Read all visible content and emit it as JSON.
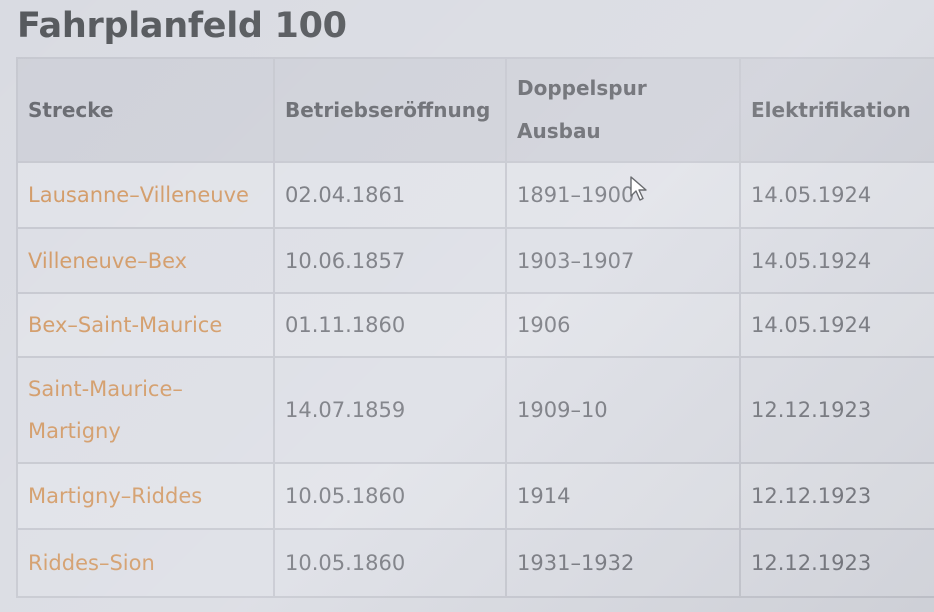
{
  "page": {
    "title": "Fahrplanfeld 100"
  },
  "table": {
    "headers": [
      "Strecke",
      "Betriebseröffnung",
      "Doppelspur Ausbau",
      "Elektrifikation"
    ],
    "rows": [
      {
        "strecke": "Lausanne–Villeneuve",
        "eroeffnung": "02.04.1861",
        "doppelspur": "1891–1900",
        "elektrifikation": "14.05.1924"
      },
      {
        "strecke": "Villeneuve–Bex",
        "eroeffnung": "10.06.1857",
        "doppelspur": "1903–1907",
        "elektrifikation": "14.05.1924"
      },
      {
        "strecke": "Bex–Saint-Maurice",
        "eroeffnung": "01.11.1860",
        "doppelspur": "1906",
        "elektrifikation": "14.05.1924"
      },
      {
        "strecke": "Saint-Maurice–Martigny",
        "eroeffnung": "14.07.1859",
        "doppelspur": "1909–10",
        "elektrifikation": "12.12.1923"
      },
      {
        "strecke": "Martigny–Riddes",
        "eroeffnung": "10.05.1860",
        "doppelspur": "1914",
        "elektrifikation": "12.12.1923"
      },
      {
        "strecke": "Riddes–Sion",
        "eroeffnung": "10.05.1860",
        "doppelspur": "1931–1932",
        "elektrifikation": "12.12.1923"
      }
    ]
  },
  "colors": {
    "link": "#d29a66",
    "text": "#76787f",
    "header_bg": "#cfd1d9",
    "border": "#c6c8d0"
  },
  "icons": {
    "cursor": "mouse-pointer-icon"
  }
}
